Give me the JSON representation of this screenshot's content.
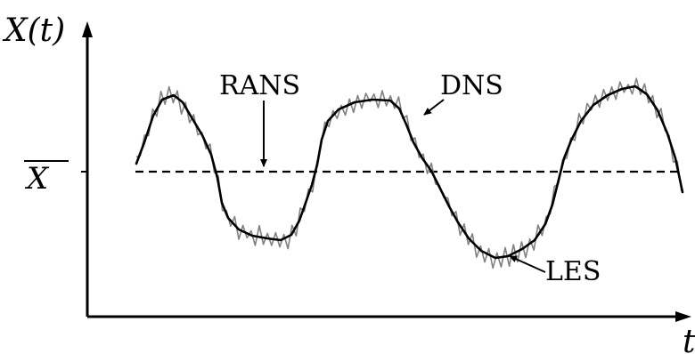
{
  "axes": {
    "y_label": "X(t)",
    "x_label": "t",
    "mean_label": "X"
  },
  "annotations": {
    "rans": "RANS",
    "dns": "DNS",
    "les": "LES"
  },
  "colors": {
    "les_stroke": "#000000",
    "dns_stroke": "#808080",
    "rans_stroke": "#000000"
  }
}
